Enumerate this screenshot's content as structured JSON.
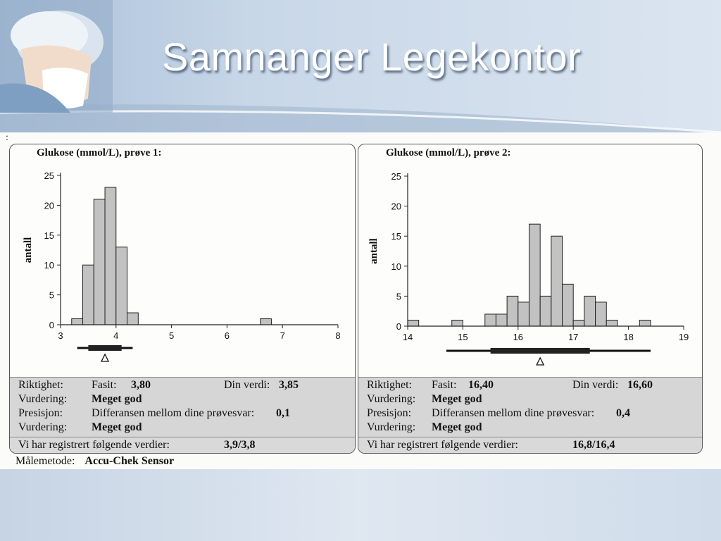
{
  "slide": {
    "title": "Samnanger Legekontor",
    "stray_mark": ":"
  },
  "colors": {
    "bar_fill": "#c2c2c2",
    "bar_stroke": "#222222",
    "info_bg": "#d6d6d6"
  },
  "chart_data": [
    {
      "type": "bar",
      "title": "Glukose (mmol/L), prøve 1:",
      "ylabel": "antall",
      "xlim": [
        3,
        8
      ],
      "ylim": [
        0,
        25
      ],
      "xticks": [
        3,
        4,
        5,
        6,
        7,
        8
      ],
      "yticks": [
        0,
        5,
        10,
        15,
        20,
        25
      ],
      "bin_width": 0.2,
      "bins": [
        {
          "x": 3.2,
          "value": 1
        },
        {
          "x": 3.4,
          "value": 10
        },
        {
          "x": 3.6,
          "value": 21
        },
        {
          "x": 3.8,
          "value": 23
        },
        {
          "x": 4.0,
          "value": 13
        },
        {
          "x": 4.2,
          "value": 2
        },
        {
          "x": 6.6,
          "value": 1
        }
      ],
      "range_bar": {
        "thin": [
          3.3,
          4.3
        ],
        "thick": [
          3.5,
          4.1
        ]
      },
      "marker": 3.8,
      "info": {
        "riktighet_label": "Riktighet:",
        "fasit_label": "Fasit:",
        "fasit_value": "3,80",
        "din_verdi_label": "Din verdi:",
        "din_verdi_value": "3,85",
        "vurdering1_label": "Vurdering:",
        "vurdering1_value": "Meget god",
        "presisjon_label": "Presisjon:",
        "differansen_label": "Differansen mellom dine prøvesvar:",
        "differansen_value": "0,1",
        "vurdering2_label": "Vurdering:",
        "vurdering2_value": "Meget god",
        "registrert_label": "Vi har registrert følgende verdier:",
        "registrert_value": "3,9/3,8"
      }
    },
    {
      "type": "bar",
      "title": "Glukose (mmol/L), prøve 2:",
      "ylabel": "antall",
      "xlim": [
        14,
        19
      ],
      "ylim": [
        0,
        25
      ],
      "xticks": [
        14,
        15,
        16,
        17,
        18,
        19
      ],
      "yticks": [
        0,
        5,
        10,
        15,
        20,
        25
      ],
      "bin_width": 0.2,
      "bins": [
        {
          "x": 14.0,
          "value": 1
        },
        {
          "x": 14.8,
          "value": 1
        },
        {
          "x": 15.4,
          "value": 2
        },
        {
          "x": 15.6,
          "value": 2
        },
        {
          "x": 15.8,
          "value": 5
        },
        {
          "x": 16.0,
          "value": 4
        },
        {
          "x": 16.2,
          "value": 17
        },
        {
          "x": 16.4,
          "value": 5
        },
        {
          "x": 16.6,
          "value": 15
        },
        {
          "x": 16.8,
          "value": 7
        },
        {
          "x": 17.0,
          "value": 1
        },
        {
          "x": 17.2,
          "value": 5
        },
        {
          "x": 17.4,
          "value": 4
        },
        {
          "x": 17.6,
          "value": 1
        },
        {
          "x": 18.2,
          "value": 1
        }
      ],
      "range_bar": {
        "thin": [
          14.7,
          18.4
        ],
        "thick": [
          15.5,
          17.3
        ]
      },
      "marker": 16.4,
      "info": {
        "riktighet_label": "Riktighet:",
        "fasit_label": "Fasit:",
        "fasit_value": "16,40",
        "din_verdi_label": "Din verdi:",
        "din_verdi_value": "16,60",
        "vurdering1_label": "Vurdering:",
        "vurdering1_value": "Meget god",
        "presisjon_label": "Presisjon:",
        "differansen_label": "Differansen mellom dine prøvesvar:",
        "differansen_value": "0,4",
        "vurdering2_label": "Vurdering:",
        "vurdering2_value": "Meget god",
        "registrert_label": "Vi har registrert følgende verdier:",
        "registrert_value": "16,8/16,4"
      }
    }
  ],
  "method": {
    "label": "Målemetode:",
    "value": "Accu-Chek Sensor"
  }
}
